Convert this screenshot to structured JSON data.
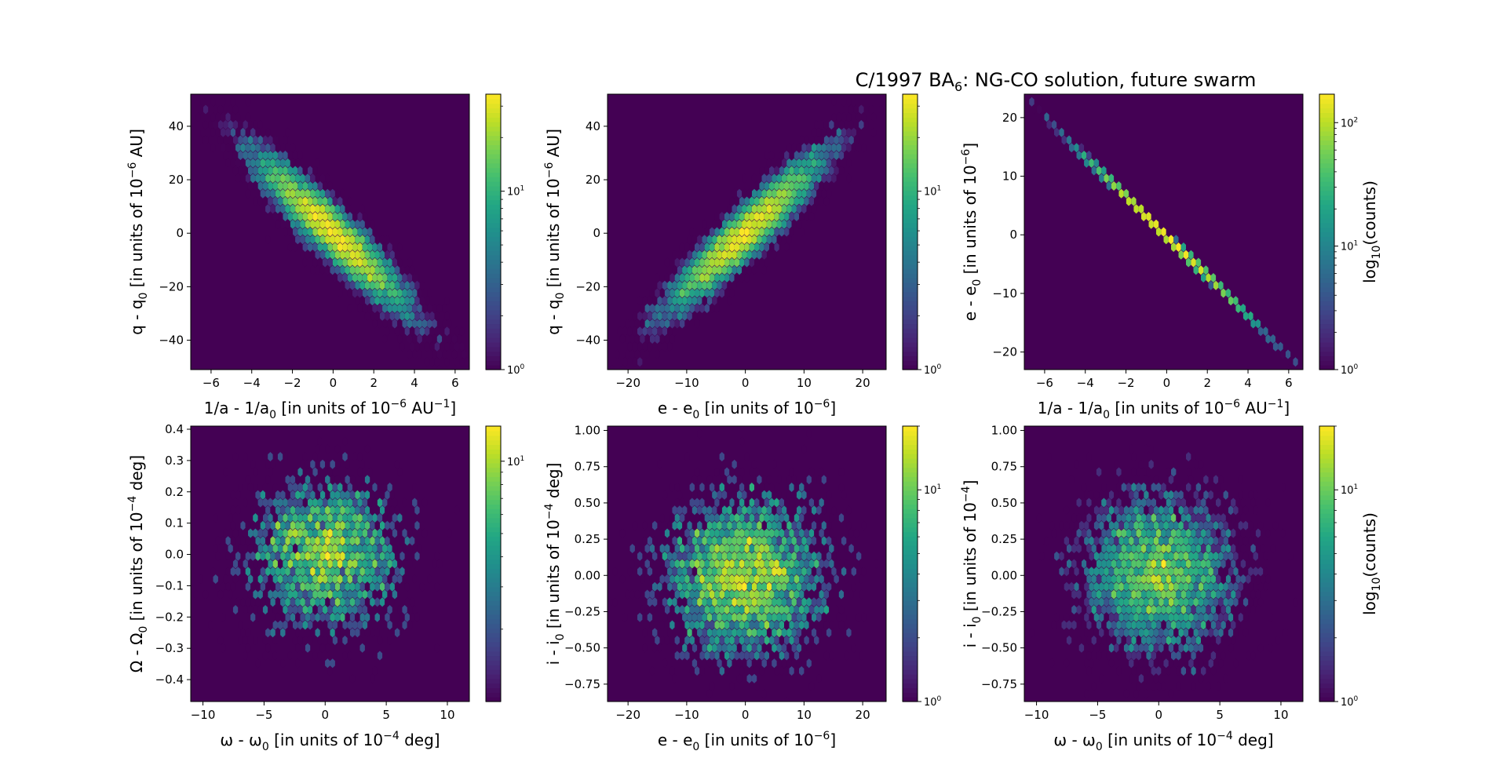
{
  "figure": {
    "title": "C/1997 BA",
    "title_sub": "6",
    "title_rest": ": NG-CO solution, future swarm"
  },
  "chart_data": [
    {
      "type": "heatmap",
      "panel": "q-vs-inva",
      "xlim": [
        -7.0,
        6.7
      ],
      "ylim": [
        -51,
        52
      ],
      "xticks": [
        -6,
        -4,
        -2,
        0,
        2,
        4,
        6
      ],
      "yticks": [
        -40,
        -20,
        0,
        20,
        40
      ],
      "xlabel": [
        "1/a - 1/a",
        "0",
        " [in units of 10",
        "−6",
        " AU",
        "−1",
        "]"
      ],
      "ylabel": [
        "q - q",
        "0",
        " [in units of 10",
        "−6",
        " AU]"
      ],
      "colorbar": {
        "scale": "log",
        "min": 1,
        "max": 35,
        "ticks": [
          {
            "base": "10",
            "exp": "0",
            "value": 1
          },
          {
            "base": "10",
            "exp": "1",
            "value": 10
          }
        ],
        "label": []
      },
      "distribution": {
        "shape": "correlated",
        "mean_x": 0,
        "mean_y": 0,
        "sd_x": 2.0,
        "sd_y": 15.5,
        "corr": -0.93,
        "n": 10000,
        "peak": 35
      }
    },
    {
      "type": "heatmap",
      "panel": "q-vs-e",
      "xlim": [
        -23.5,
        24
      ],
      "ylim": [
        -51,
        52
      ],
      "xticks": [
        -20,
        -10,
        0,
        10,
        20
      ],
      "yticks": [
        -40,
        -20,
        0,
        20,
        40
      ],
      "xlabel": [
        "e - e",
        "0",
        " [in units of 10",
        "−6",
        "]"
      ],
      "ylabel": [
        "q - q",
        "0",
        " [in units of 10",
        "−6",
        " AU]"
      ],
      "colorbar": {
        "scale": "log",
        "min": 1,
        "max": 35,
        "ticks": [
          {
            "base": "10",
            "exp": "0",
            "value": 1
          },
          {
            "base": "10",
            "exp": "1",
            "value": 10
          }
        ],
        "label": []
      },
      "distribution": {
        "shape": "correlated",
        "mean_x": 0,
        "mean_y": 0,
        "sd_x": 7.0,
        "sd_y": 15.5,
        "corr": 0.93,
        "n": 10000,
        "peak": 35
      }
    },
    {
      "type": "heatmap",
      "panel": "e-vs-inva",
      "xlim": [
        -7.0,
        6.7
      ],
      "ylim": [
        -23,
        24
      ],
      "xticks": [
        -6,
        -4,
        -2,
        0,
        2,
        4,
        6
      ],
      "yticks": [
        -20,
        -10,
        0,
        10,
        20
      ],
      "xlabel": [
        "1/a - 1/a",
        "0",
        " [in units of 10",
        "−6",
        " AU",
        "−1",
        "]"
      ],
      "ylabel": [
        "e - e",
        "0",
        " [in units of 10",
        "−6",
        "]"
      ],
      "colorbar": {
        "scale": "log",
        "min": 1,
        "max": 170,
        "ticks": [
          {
            "base": "10",
            "exp": "0",
            "value": 1
          },
          {
            "base": "10",
            "exp": "1",
            "value": 10
          },
          {
            "base": "10",
            "exp": "2",
            "value": 100
          }
        ],
        "label": [
          "log",
          "10",
          "(counts)"
        ]
      },
      "distribution": {
        "shape": "line",
        "x_start": -6.7,
        "y_start": 22.4,
        "x_end": 6.3,
        "y_end": -21.6,
        "sd_x": 2.0,
        "n": 10000,
        "peak": 170
      }
    },
    {
      "type": "heatmap",
      "panel": "Omega-vs-omega",
      "xlim": [
        -11,
        11.8
      ],
      "ylim": [
        -0.47,
        0.41
      ],
      "xticks": [
        -10,
        -5,
        0,
        5,
        10
      ],
      "yticks": [
        -0.4,
        -0.3,
        -0.2,
        -0.1,
        0.0,
        0.1,
        0.2,
        0.3,
        0.4
      ],
      "xlabel": [
        "ω - ω",
        "0",
        " [in units of 10",
        "−4",
        " deg]"
      ],
      "ylabel": [
        "Ω - Ω",
        "0",
        " [in units of 10",
        "−4",
        " deg]"
      ],
      "colorbar": {
        "scale": "log",
        "min": 1,
        "max": 14,
        "ticks": [
          {
            "base": "10",
            "exp": "1",
            "value": 10
          }
        ],
        "label": []
      },
      "distribution": {
        "shape": "round",
        "mean_x": 0,
        "mean_y": 0,
        "sd_x": 3.3,
        "sd_y": 0.13,
        "n": 2500,
        "peak": 14
      }
    },
    {
      "type": "heatmap",
      "panel": "i-vs-e",
      "xlim": [
        -23.5,
        24
      ],
      "ylim": [
        -0.87,
        1.03
      ],
      "xticks": [
        -20,
        -10,
        0,
        10,
        20
      ],
      "yticks": [
        -0.75,
        -0.5,
        -0.25,
        0.0,
        0.25,
        0.5,
        0.75,
        1.0
      ],
      "xlabel": [
        "e - e",
        "0",
        " [in units of 10",
        "−6",
        "]"
      ],
      "ylabel": [
        "i - i",
        "0",
        " [in units of 10",
        "−4",
        " deg]"
      ],
      "colorbar": {
        "scale": "log",
        "min": 1,
        "max": 20,
        "ticks": [
          {
            "base": "10",
            "exp": "0",
            "value": 1
          },
          {
            "base": "10",
            "exp": "1",
            "value": 10
          }
        ],
        "label": []
      },
      "distribution": {
        "shape": "round",
        "mean_x": 0,
        "mean_y": 0,
        "sd_x": 7.0,
        "sd_y": 0.28,
        "n": 4000,
        "peak": 20
      }
    },
    {
      "type": "heatmap",
      "panel": "i-vs-omega",
      "xlim": [
        -11,
        11.8
      ],
      "ylim": [
        -0.87,
        1.03
      ],
      "xticks": [
        -10,
        -5,
        0,
        5,
        10
      ],
      "yticks": [
        -0.75,
        -0.5,
        -0.25,
        0.0,
        0.25,
        0.5,
        0.75,
        1.0
      ],
      "xlabel": [
        "ω - ω",
        "0",
        " [in units of 10",
        "−4",
        " deg]"
      ],
      "ylabel": [
        "i - i",
        "0",
        " [in units of 10",
        "−4",
        "]"
      ],
      "colorbar": {
        "scale": "log",
        "min": 1,
        "max": 20,
        "ticks": [
          {
            "base": "10",
            "exp": "0",
            "value": 1
          },
          {
            "base": "10",
            "exp": "1",
            "value": 10
          }
        ],
        "label": [
          "log",
          "10",
          "(counts)"
        ]
      },
      "distribution": {
        "shape": "round",
        "mean_x": 0,
        "mean_y": 0,
        "sd_x": 3.3,
        "sd_y": 0.28,
        "n": 4000,
        "peak": 20
      }
    }
  ]
}
